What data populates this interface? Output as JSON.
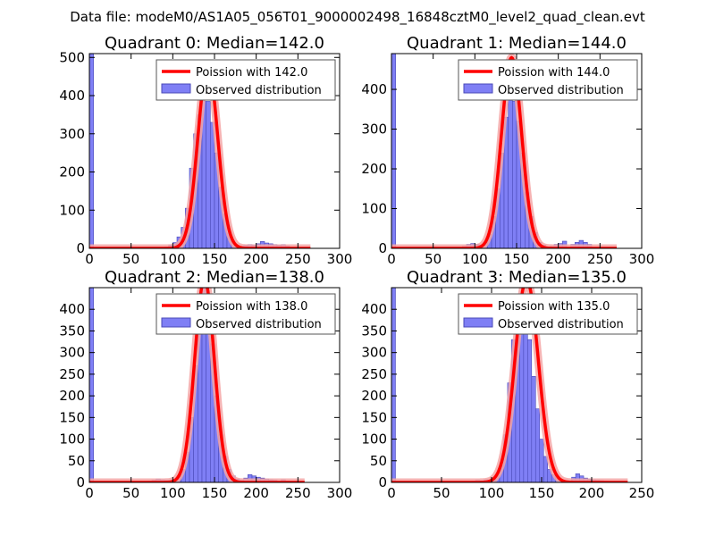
{
  "suptitle": "Data file: modeM0/AS1A05_056T01_9000002498_16848cztM0_level2_quad_clean.evt",
  "colors": {
    "bar_fill": "#7f7ff5",
    "bar_edge": "#4a4ab8",
    "curve": "#ff0000",
    "curve_glow": "#f4a6a6",
    "axis": "#000000",
    "legend_border": "#555555"
  },
  "chart_data": [
    {
      "type": "bar",
      "title": "Quadrant 0: Median=142.0",
      "median": 142.0,
      "xlim": [
        0,
        300
      ],
      "ylim": [
        0,
        510
      ],
      "xticks": [
        0,
        50,
        100,
        150,
        200,
        250,
        300
      ],
      "yticks": [
        0,
        100,
        200,
        300,
        400,
        500
      ],
      "legend": [
        "Poission with 142.0",
        "Observed distribution"
      ],
      "bin_width": 5,
      "bins": [
        [
          0,
          510
        ],
        [
          80,
          2
        ],
        [
          90,
          4
        ],
        [
          95,
          8
        ],
        [
          100,
          15
        ],
        [
          105,
          30
        ],
        [
          110,
          55
        ],
        [
          115,
          105
        ],
        [
          120,
          210
        ],
        [
          125,
          300
        ],
        [
          130,
          350
        ],
        [
          135,
          385
        ],
        [
          140,
          385
        ],
        [
          145,
          330
        ],
        [
          150,
          250
        ],
        [
          155,
          160
        ],
        [
          160,
          90
        ],
        [
          165,
          40
        ],
        [
          170,
          15
        ],
        [
          175,
          8
        ],
        [
          180,
          6
        ],
        [
          185,
          8
        ],
        [
          190,
          10
        ],
        [
          195,
          9
        ],
        [
          200,
          12
        ],
        [
          205,
          18
        ],
        [
          210,
          14
        ],
        [
          215,
          12
        ],
        [
          220,
          10
        ],
        [
          225,
          8
        ],
        [
          230,
          10
        ],
        [
          235,
          6
        ],
        [
          240,
          3
        ]
      ],
      "curve": {
        "mu": 142,
        "peak": 480,
        "x_end": 265
      }
    },
    {
      "type": "bar",
      "title": "Quadrant 1: Median=144.0",
      "median": 144.0,
      "xlim": [
        0,
        300
      ],
      "ylim": [
        0,
        490
      ],
      "xticks": [
        0,
        50,
        100,
        150,
        200,
        250,
        300
      ],
      "yticks": [
        0,
        100,
        200,
        300,
        400
      ],
      "legend": [
        "Poission with 144.0",
        "Observed distribution"
      ],
      "bin_width": 5,
      "bins": [
        [
          0,
          490
        ],
        [
          85,
          5
        ],
        [
          90,
          10
        ],
        [
          95,
          12
        ],
        [
          100,
          10
        ],
        [
          105,
          8
        ],
        [
          110,
          15
        ],
        [
          115,
          35
        ],
        [
          120,
          80
        ],
        [
          125,
          150
        ],
        [
          130,
          240
        ],
        [
          135,
          330
        ],
        [
          140,
          380
        ],
        [
          145,
          370
        ],
        [
          150,
          320
        ],
        [
          155,
          240
        ],
        [
          160,
          140
        ],
        [
          165,
          80
        ],
        [
          170,
          40
        ],
        [
          175,
          15
        ],
        [
          180,
          8
        ],
        [
          190,
          5
        ],
        [
          195,
          10
        ],
        [
          200,
          12
        ],
        [
          205,
          18
        ],
        [
          215,
          10
        ],
        [
          220,
          15
        ],
        [
          225,
          20
        ],
        [
          230,
          15
        ],
        [
          235,
          10
        ]
      ],
      "curve": {
        "mu": 144,
        "peak": 480,
        "x_end": 270
      }
    },
    {
      "type": "bar",
      "title": "Quadrant 2: Median=138.0",
      "median": 138.0,
      "xlim": [
        0,
        300
      ],
      "ylim": [
        0,
        450
      ],
      "xticks": [
        0,
        50,
        100,
        150,
        200,
        250,
        300
      ],
      "yticks": [
        0,
        50,
        100,
        150,
        200,
        250,
        300,
        350,
        400
      ],
      "legend": [
        "Poission with 138.0",
        "Observed distribution"
      ],
      "bin_width": 5,
      "bins": [
        [
          0,
          450
        ],
        [
          70,
          3
        ],
        [
          75,
          5
        ],
        [
          80,
          8
        ],
        [
          85,
          6
        ],
        [
          90,
          5
        ],
        [
          95,
          5
        ],
        [
          100,
          8
        ],
        [
          105,
          15
        ],
        [
          110,
          30
        ],
        [
          115,
          70
        ],
        [
          120,
          150
        ],
        [
          125,
          270
        ],
        [
          130,
          390
        ],
        [
          135,
          450
        ],
        [
          140,
          410
        ],
        [
          145,
          320
        ],
        [
          150,
          200
        ],
        [
          155,
          110
        ],
        [
          160,
          60
        ],
        [
          165,
          30
        ],
        [
          170,
          15
        ],
        [
          175,
          8
        ],
        [
          180,
          5
        ],
        [
          185,
          10
        ],
        [
          190,
          18
        ],
        [
          195,
          15
        ],
        [
          200,
          12
        ],
        [
          205,
          10
        ],
        [
          210,
          8
        ],
        [
          215,
          6
        ],
        [
          220,
          5
        ],
        [
          230,
          6
        ],
        [
          235,
          3
        ],
        [
          240,
          2
        ]
      ],
      "curve": {
        "mu": 138,
        "peak": 470,
        "x_end": 258
      }
    },
    {
      "type": "bar",
      "title": "Quadrant 3: Median=135.0",
      "median": 135.0,
      "xlim": [
        0,
        250
      ],
      "ylim": [
        0,
        450
      ],
      "xticks": [
        0,
        50,
        100,
        150,
        200,
        250
      ],
      "yticks": [
        0,
        50,
        100,
        150,
        200,
        250,
        300,
        350,
        400
      ],
      "legend": [
        "Poission with 135.0",
        "Observed distribution"
      ],
      "bin_width": 4,
      "bins": [
        [
          0,
          450
        ],
        [
          80,
          3
        ],
        [
          84,
          5
        ],
        [
          88,
          4
        ],
        [
          92,
          6
        ],
        [
          96,
          5
        ],
        [
          100,
          6
        ],
        [
          104,
          15
        ],
        [
          108,
          40
        ],
        [
          112,
          110
        ],
        [
          116,
          230
        ],
        [
          120,
          330
        ],
        [
          124,
          360
        ],
        [
          128,
          420
        ],
        [
          132,
          400
        ],
        [
          136,
          330
        ],
        [
          140,
          245
        ],
        [
          144,
          170
        ],
        [
          148,
          100
        ],
        [
          152,
          60
        ],
        [
          156,
          30
        ],
        [
          160,
          18
        ],
        [
          164,
          10
        ],
        [
          168,
          6
        ],
        [
          172,
          4
        ],
        [
          176,
          4
        ],
        [
          180,
          12
        ],
        [
          184,
          20
        ],
        [
          188,
          15
        ],
        [
          192,
          10
        ],
        [
          196,
          8
        ],
        [
          200,
          6
        ],
        [
          204,
          5
        ],
        [
          208,
          4
        ],
        [
          212,
          3
        ],
        [
          216,
          2
        ]
      ],
      "curve": {
        "mu": 135,
        "peak": 470,
        "x_end": 236
      }
    }
  ]
}
